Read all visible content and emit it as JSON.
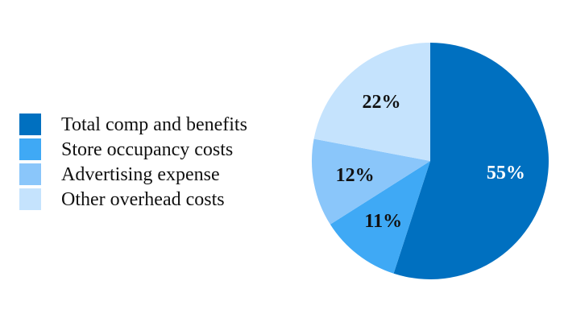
{
  "chart_data": {
    "type": "pie",
    "start": "12 o'clock",
    "direction": "clockwise",
    "legend_placement": "left",
    "slices": [
      {
        "label": "Total comp and benefits",
        "value": 55,
        "value_label": "55%",
        "color": "#0070c0",
        "label_color": "#ffffff"
      },
      {
        "label": "Store occupancy costs",
        "value": 11,
        "value_label": "11%",
        "color": "#3fa9f5",
        "label_color": "#111111"
      },
      {
        "label": "Advertising expense",
        "value": 12,
        "value_label": "12%",
        "color": "#8ac6fa",
        "label_color": "#111111"
      },
      {
        "label": "Other overhead costs",
        "value": 22,
        "value_label": "22%",
        "color": "#c5e3fd",
        "label_color": "#111111"
      }
    ]
  }
}
